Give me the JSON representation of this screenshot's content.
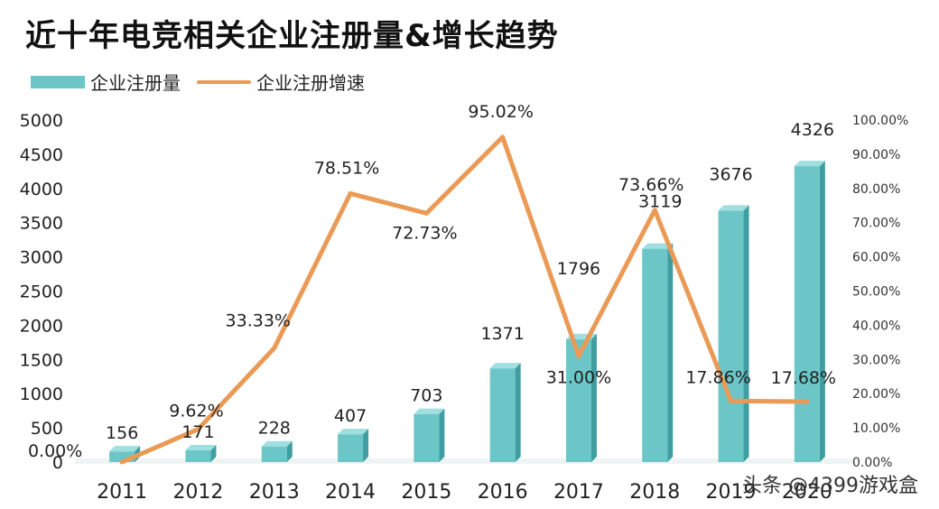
{
  "colors": {
    "bar": "#6cc6c8",
    "bar_side": "#3f9ea1",
    "bar_top": "#9fdfe0",
    "line": "#eb9a56",
    "text": "#222222"
  },
  "watermark": "头条 @4399游戏盒",
  "chart_data": {
    "type": "bar+line",
    "title": "近十年电竞相关企业注册量&增长趋势",
    "legend": [
      "企业注册量",
      "企业注册增速"
    ],
    "categories": [
      "2011",
      "2012",
      "2013",
      "2014",
      "2015",
      "2016",
      "2017",
      "2018",
      "2019",
      "2020"
    ],
    "series": [
      {
        "name": "企业注册量",
        "kind": "bar",
        "axis": "left",
        "values": [
          156,
          171,
          228,
          407,
          703,
          1371,
          1796,
          3119,
          3676,
          4326
        ],
        "labels": [
          "156",
          "171",
          "228",
          "407",
          "703",
          "1371",
          "1796",
          "3119",
          "3676",
          "4326"
        ]
      },
      {
        "name": "企业注册增速",
        "kind": "line",
        "axis": "right",
        "values": [
          0.0,
          9.62,
          33.33,
          78.51,
          72.73,
          95.02,
          31.0,
          73.66,
          17.86,
          17.68
        ],
        "labels": [
          "0.00%",
          "9.62%",
          "33.33%",
          "78.51%",
          "72.73%",
          "95.02%",
          "31.00%",
          "73.66%",
          "17.86%",
          "17.68%"
        ]
      }
    ],
    "y_left": {
      "range": [
        0,
        5000
      ],
      "ticks": [
        0,
        500,
        1000,
        1500,
        2000,
        2500,
        3000,
        3500,
        4000,
        4500,
        5000
      ],
      "tick_labels": [
        "0",
        "500",
        "1000",
        "1500",
        "2000",
        "2500",
        "3000",
        "3500",
        "4000",
        "4500",
        "5000"
      ]
    },
    "y_right": {
      "range": [
        0,
        100
      ],
      "ticks": [
        0,
        10,
        20,
        30,
        40,
        50,
        60,
        70,
        80,
        90,
        100
      ],
      "tick_labels": [
        "0.00%",
        "10.00%",
        "20.00%",
        "30.00%",
        "40.00%",
        "50.00%",
        "60.00%",
        "70.00%",
        "80.00%",
        "90.00%",
        "100.00%"
      ]
    },
    "grid": false,
    "legend_position": "top-left"
  }
}
